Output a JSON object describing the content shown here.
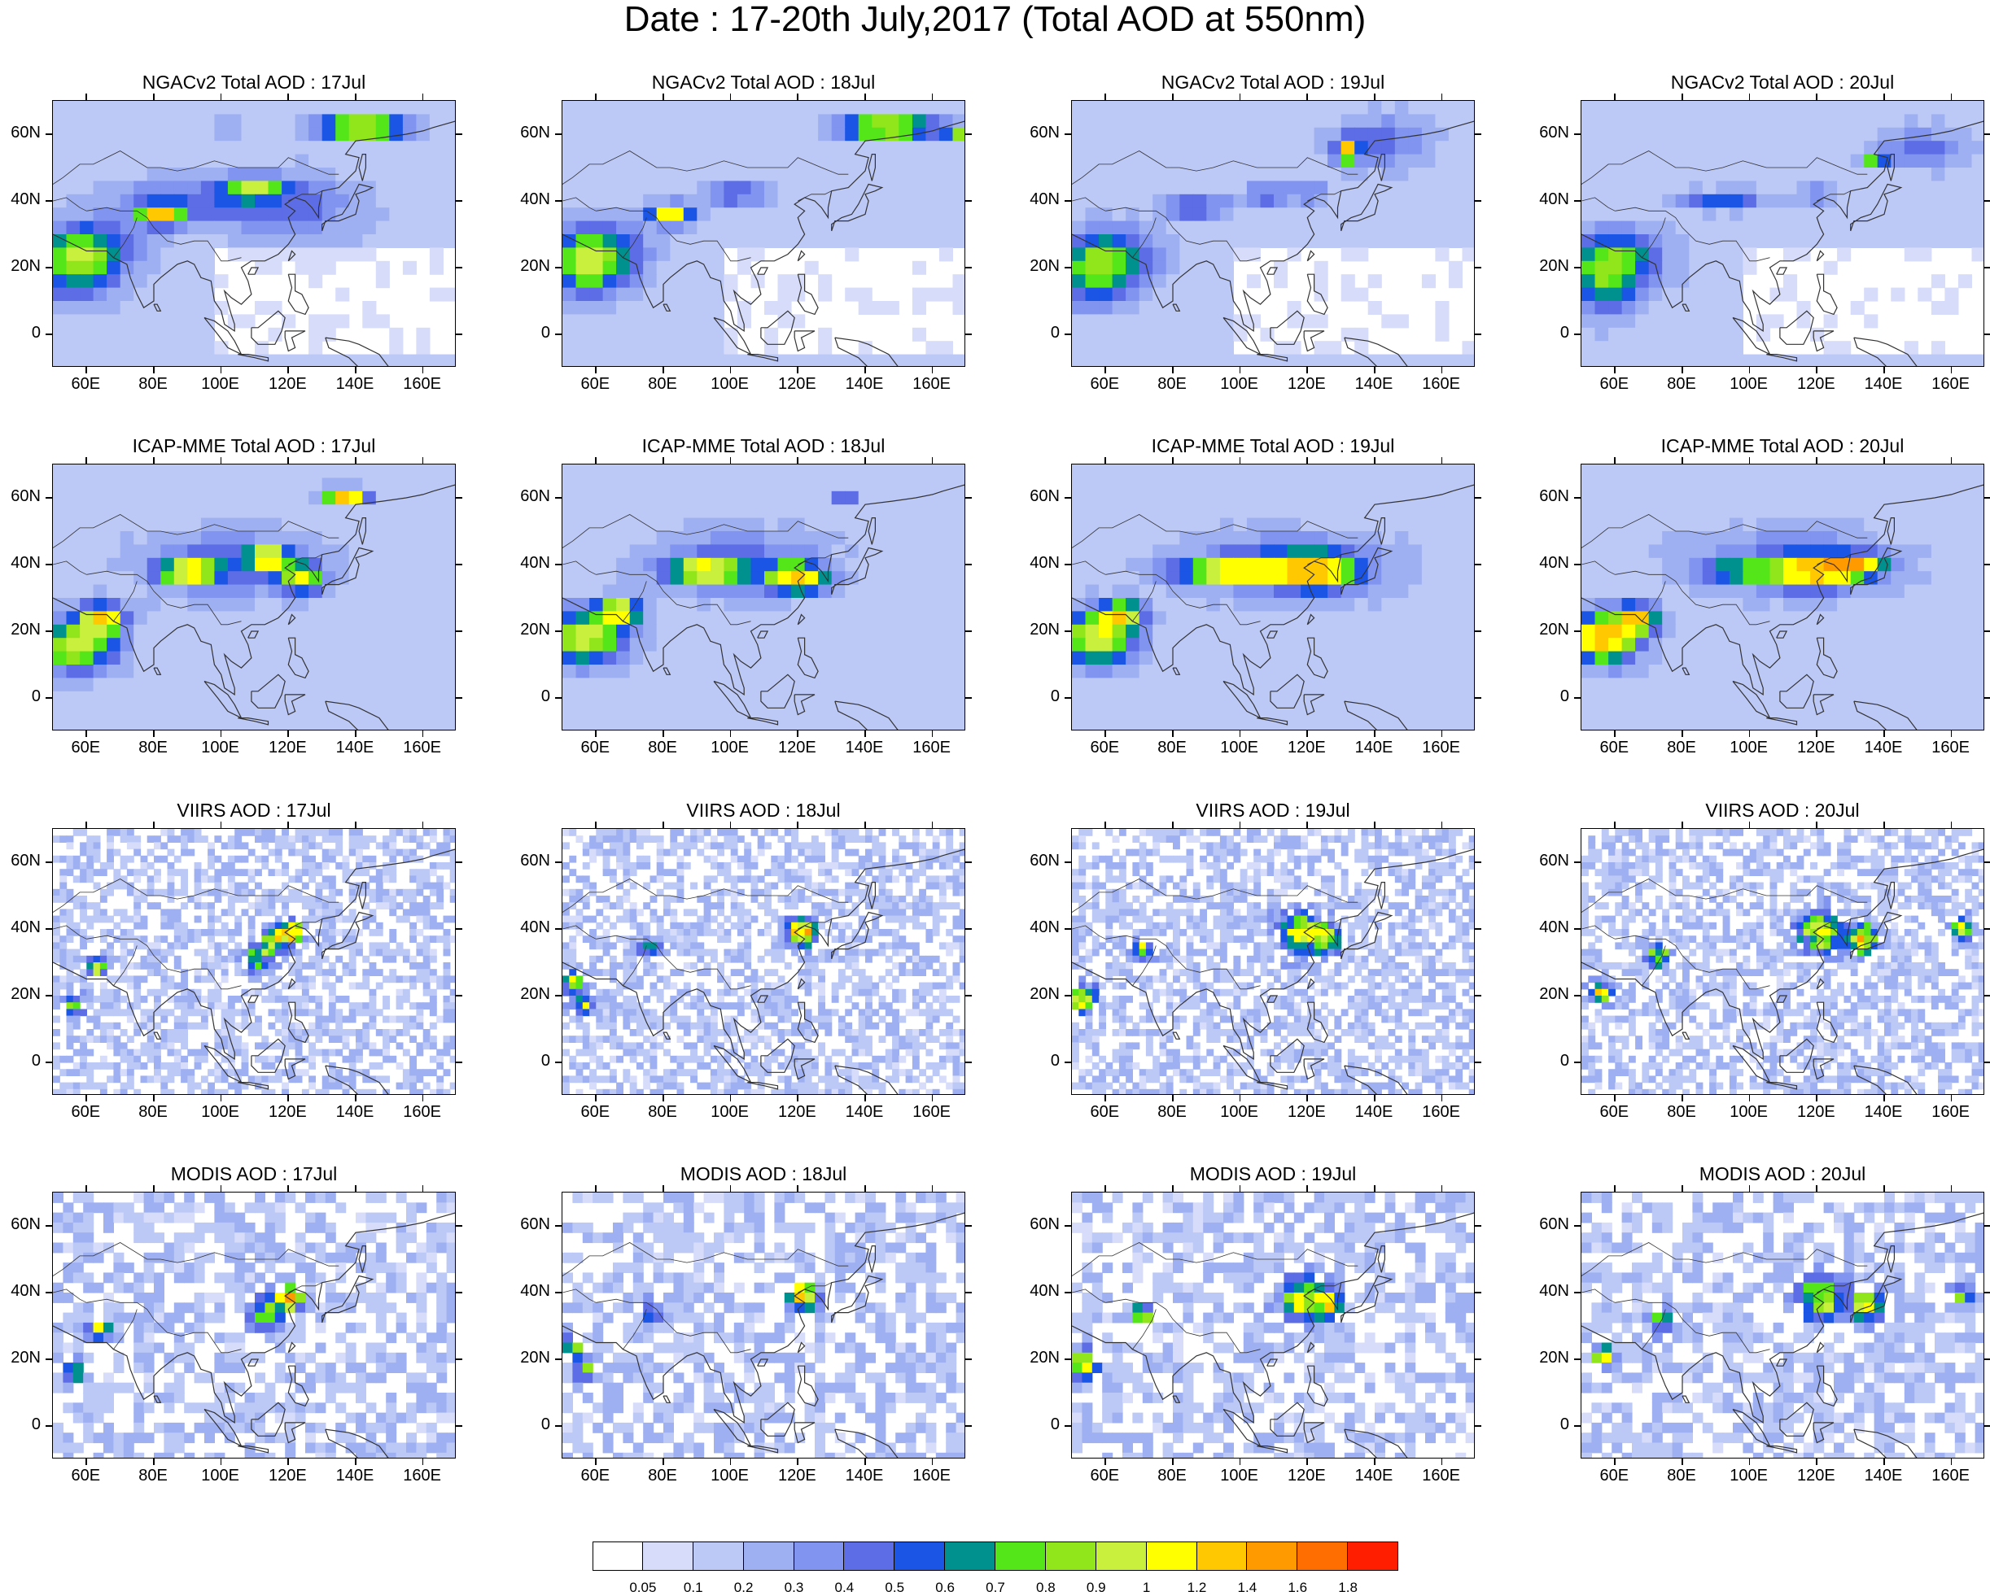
{
  "title": "Date : 17-20th July,2017 (Total AOD at 550nm)",
  "lat_labels": [
    "60N",
    "40N",
    "20N",
    "0"
  ],
  "lon_labels": [
    "60E",
    "80E",
    "100E",
    "120E",
    "140E",
    "160E"
  ],
  "panels": [
    {
      "title": "NGACv2 Total AOD : 17Jul",
      "kind": "model"
    },
    {
      "title": "NGACv2 Total AOD : 18Jul",
      "kind": "model"
    },
    {
      "title": "NGACv2 Total AOD : 19Jul",
      "kind": "model"
    },
    {
      "title": "NGACv2 Total AOD : 20Jul",
      "kind": "model"
    },
    {
      "title": "ICAP-MME Total AOD : 17Jul",
      "kind": "model-high"
    },
    {
      "title": "ICAP-MME Total AOD : 18Jul",
      "kind": "model-high"
    },
    {
      "title": "ICAP-MME Total AOD : 19Jul",
      "kind": "model-high"
    },
    {
      "title": "ICAP-MME Total AOD : 20Jul",
      "kind": "model-high"
    },
    {
      "title": "VIIRS AOD : 17Jul",
      "kind": "satellite"
    },
    {
      "title": "VIIRS AOD : 18Jul",
      "kind": "satellite"
    },
    {
      "title": "VIIRS AOD : 19Jul",
      "kind": "satellite"
    },
    {
      "title": "VIIRS AOD : 20Jul",
      "kind": "satellite"
    },
    {
      "title": "MODIS AOD : 17Jul",
      "kind": "satellite-coarse"
    },
    {
      "title": "MODIS AOD : 18Jul",
      "kind": "satellite-coarse"
    },
    {
      "title": "MODIS AOD : 19Jul",
      "kind": "satellite-coarse"
    },
    {
      "title": "MODIS AOD : 20Jul",
      "kind": "satellite-coarse"
    }
  ],
  "colorbar": {
    "labels": [
      "0.05",
      "0.1",
      "0.2",
      "0.3",
      "0.4",
      "0.5",
      "0.6",
      "0.7",
      "0.8",
      "0.9",
      "1",
      "1.2",
      "1.4",
      "1.6",
      "1.8"
    ],
    "colors": [
      "#ffffff",
      "#d6dcfa",
      "#bcc8f6",
      "#9fb0f2",
      "#8194ef",
      "#5c6de6",
      "#1b55e6",
      "#00918f",
      "#55e61a",
      "#90e61a",
      "#c8f03c",
      "#ffff00",
      "#ffc800",
      "#ff9b00",
      "#ff6e00",
      "#ff1e00"
    ]
  }
}
